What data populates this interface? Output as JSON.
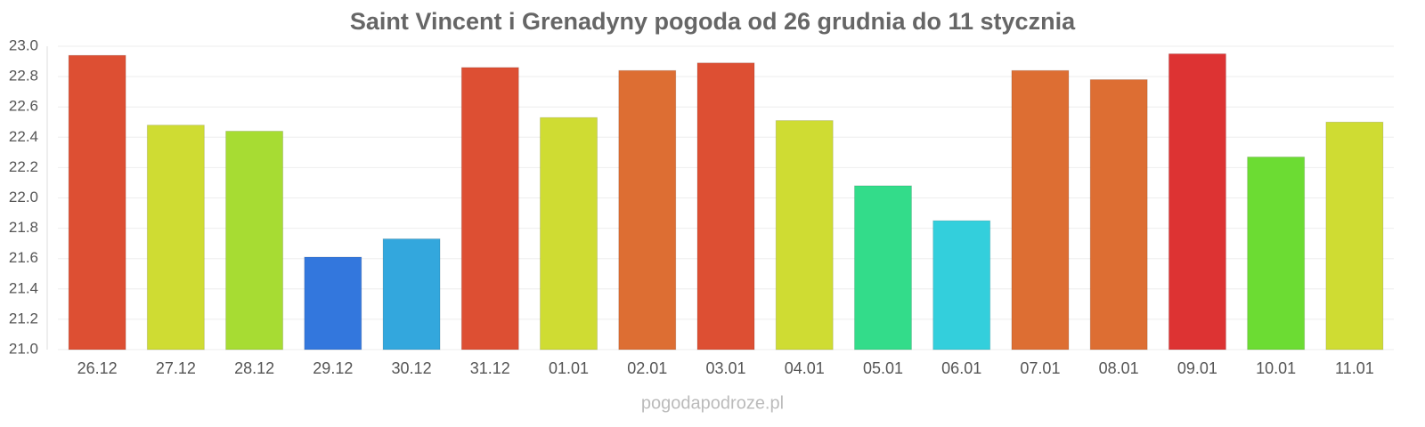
{
  "chart_data": {
    "type": "bar",
    "title": "Saint Vincent i Grenadyny pogoda od 26 grudnia do 11 stycznia",
    "categories": [
      "26.12",
      "27.12",
      "28.12",
      "29.12",
      "30.12",
      "31.12",
      "01.01",
      "02.01",
      "03.01",
      "04.01",
      "05.01",
      "06.01",
      "07.01",
      "08.01",
      "09.01",
      "10.01",
      "11.01"
    ],
    "values": [
      22.94,
      22.48,
      22.44,
      21.61,
      21.73,
      22.86,
      22.53,
      22.84,
      22.89,
      22.51,
      22.08,
      21.85,
      22.84,
      22.78,
      22.95,
      22.27,
      22.5
    ],
    "colors": [
      "#dd4f33",
      "#cfdc33",
      "#a7dc33",
      "#3377dd",
      "#33a7dd",
      "#dd4f33",
      "#cfdc33",
      "#dd6e33",
      "#dd4f33",
      "#cfdc33",
      "#33dc8a",
      "#33cfdc",
      "#dd6e33",
      "#dd6e33",
      "#dd3333",
      "#6cdc33",
      "#cfdc33"
    ],
    "ylim": [
      21.0,
      23.0
    ],
    "yticks": [
      {
        "value": 21.0,
        "label": "21.0"
      },
      21.2,
      21.4,
      21.6,
      21.8,
      {
        "value": 22.0,
        "label": "22.0"
      },
      22.2,
      22.4,
      22.6,
      22.8,
      {
        "value": 23.0,
        "label": "23.0"
      }
    ],
    "grid": true,
    "footer": "pogodapodroze.pl"
  }
}
